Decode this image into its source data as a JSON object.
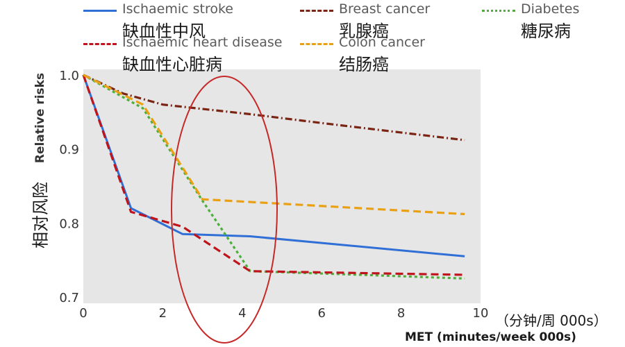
{
  "chart_data": {
    "type": "line",
    "title": "",
    "xlabel": "MET (minutes/week 000s)",
    "xlabel_cn": "（分钟/周 000s）",
    "ylabel": "Relative risks",
    "ylabel_cn": "相对风险",
    "xlim": [
      0,
      10
    ],
    "ylim": [
      0.7,
      1.0
    ],
    "x_ticks": [
      "0",
      "2",
      "4",
      "6",
      "8",
      "10"
    ],
    "y_ticks": [
      "0.7",
      "0.8",
      "0.9",
      "1.0"
    ],
    "grid": false,
    "plot_background": "#e6e6e6",
    "legend_position": "top",
    "series": [
      {
        "name": "Ischaemic stroke",
        "name_cn": "缺血性中风",
        "color": "#2f6fd6",
        "dash": "solid",
        "points": [
          [
            0,
            1.0
          ],
          [
            1.2,
            0.82
          ],
          [
            2.5,
            0.785
          ],
          [
            4.2,
            0.782
          ],
          [
            9.6,
            0.755
          ]
        ]
      },
      {
        "name": "Breast cancer",
        "name_cn": "乳腺癌",
        "color": "#7a2513",
        "dash": "dashdot",
        "points": [
          [
            0,
            1.0
          ],
          [
            1,
            0.975
          ],
          [
            2,
            0.96
          ],
          [
            4.2,
            0.947
          ],
          [
            6,
            0.935
          ],
          [
            9.6,
            0.912
          ]
        ]
      },
      {
        "name": "Diabetes",
        "name_cn": "糖尿病",
        "color": "#4caf3a",
        "dash": "dotted",
        "points": [
          [
            0,
            1.0
          ],
          [
            1.5,
            0.955
          ],
          [
            3,
            0.83
          ],
          [
            4.2,
            0.735
          ],
          [
            7,
            0.73
          ],
          [
            9.6,
            0.725
          ]
        ]
      },
      {
        "name": "Ischaemic heart disease",
        "name_cn": "缺血性心脏病",
        "color": "#c0141c",
        "dash": "dashed",
        "points": [
          [
            0,
            1.0
          ],
          [
            1.2,
            0.815
          ],
          [
            2.5,
            0.795
          ],
          [
            4.2,
            0.735
          ],
          [
            9.6,
            0.73
          ]
        ]
      },
      {
        "name": "Colon cancer",
        "name_cn": "结肠癌",
        "color": "#e9a012",
        "dash": "dashed",
        "points": [
          [
            0,
            1.0
          ],
          [
            1.5,
            0.96
          ],
          [
            3,
            0.832
          ],
          [
            5,
            0.826
          ],
          [
            9.6,
            0.812
          ]
        ]
      }
    ],
    "annotation": {
      "shape": "ellipse",
      "color": "#c62828"
    }
  }
}
